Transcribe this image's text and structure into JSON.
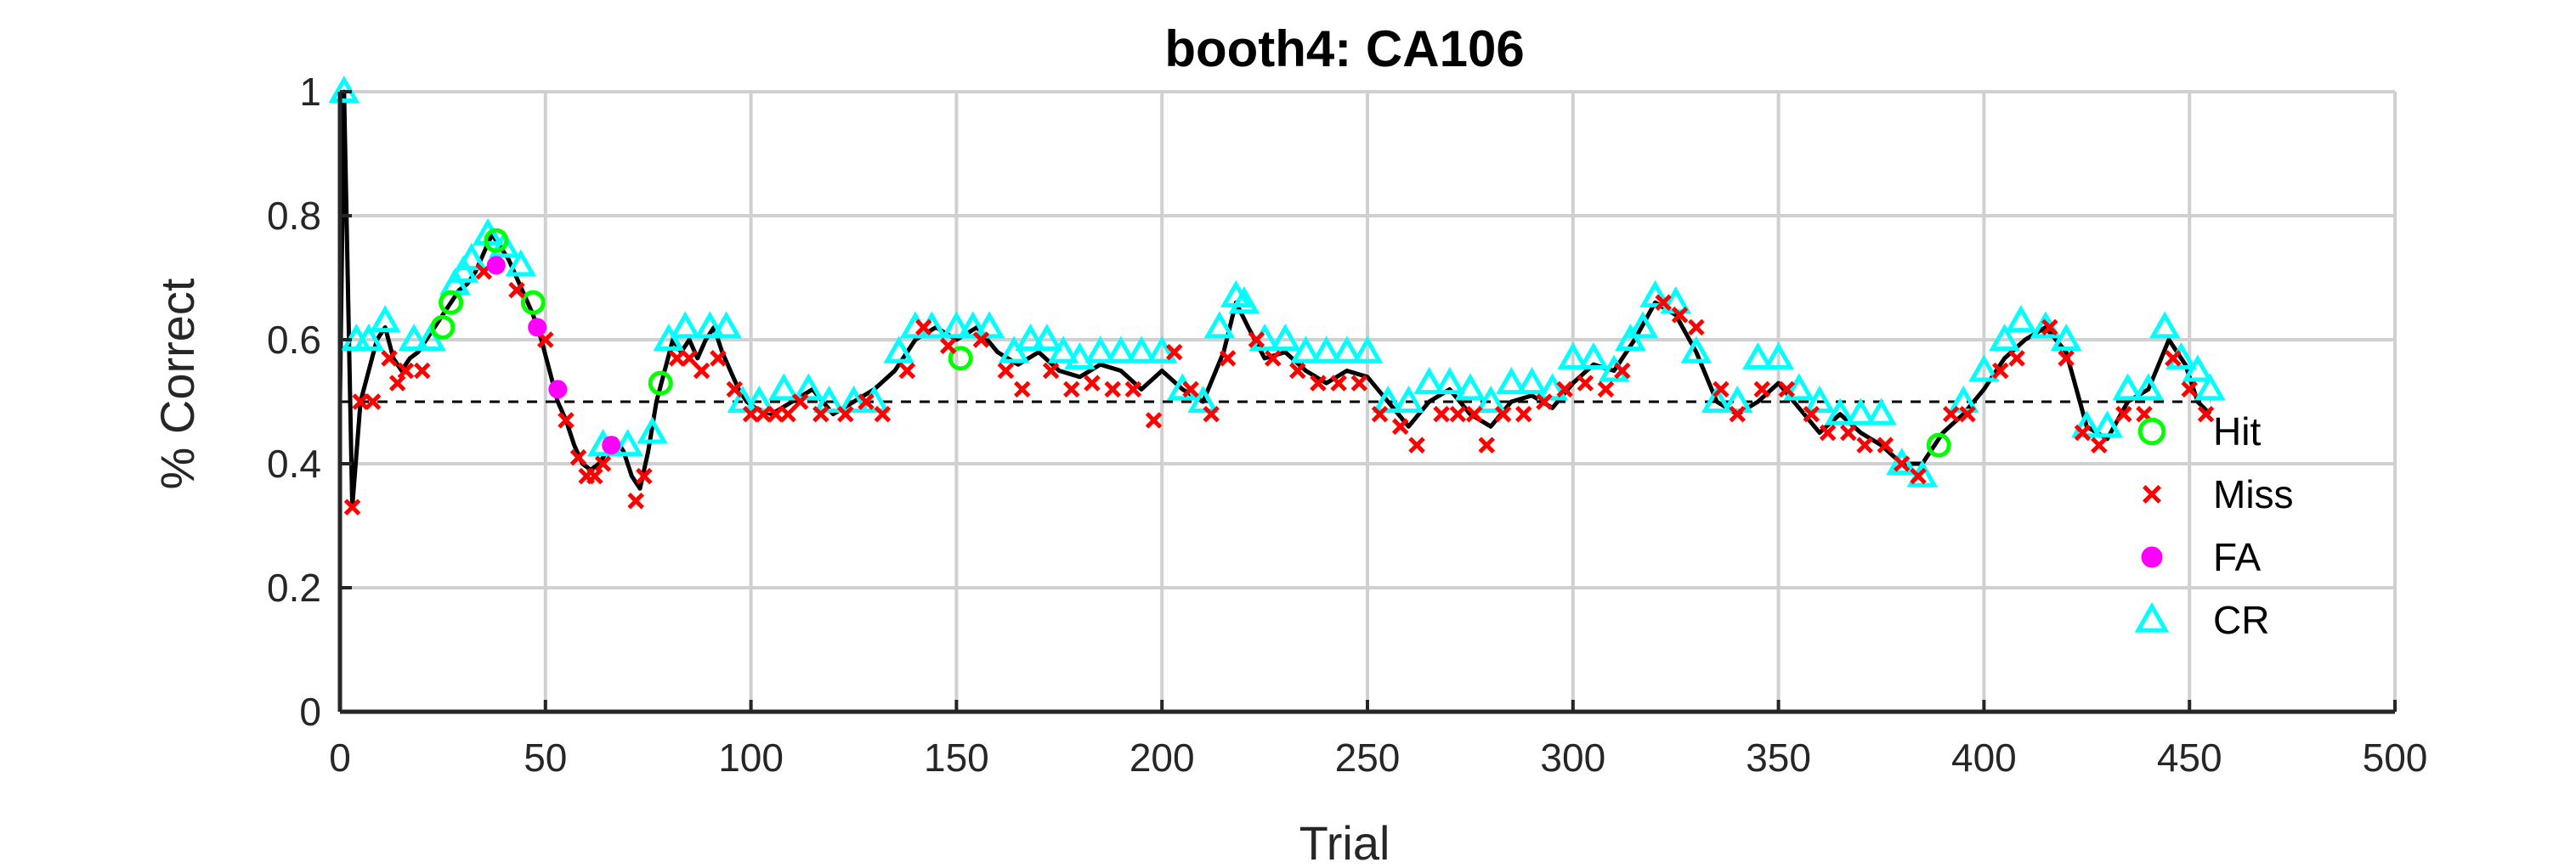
{
  "chart_data": {
    "type": "line",
    "title": "booth4: CA106",
    "xlabel": "Trial",
    "ylabel": "% Correct",
    "xlim": [
      0,
      500
    ],
    "ylim": [
      0,
      1
    ],
    "grid": true,
    "chance_level": 0.5,
    "xticks": [
      "0",
      "50",
      "100",
      "150",
      "200",
      "250",
      "300",
      "350",
      "400",
      "450",
      "500"
    ],
    "yticks": [
      "0",
      "0.2",
      "0.4",
      "0.6",
      "0.8",
      "1"
    ],
    "legend_position": "right",
    "legend": [
      {
        "name": "Hit",
        "marker": "circle-open",
        "color": "#00ff00"
      },
      {
        "name": "Miss",
        "marker": "x",
        "color": "#ff0000"
      },
      {
        "name": "FA",
        "marker": "circle-filled",
        "color": "#ff00ff"
      },
      {
        "name": "CR",
        "marker": "triangle-open",
        "color": "#00ffff"
      }
    ],
    "line_color": "#000000",
    "running_accuracy": [
      [
        1,
        1.0
      ],
      [
        3,
        0.33
      ],
      [
        5,
        0.5
      ],
      [
        7,
        0.55
      ],
      [
        9,
        0.6
      ],
      [
        11,
        0.62
      ],
      [
        13,
        0.57
      ],
      [
        15,
        0.55
      ],
      [
        17,
        0.57
      ],
      [
        19,
        0.58
      ],
      [
        21,
        0.6
      ],
      [
        23,
        0.62
      ],
      [
        25,
        0.64
      ],
      [
        27,
        0.66
      ],
      [
        29,
        0.68
      ],
      [
        31,
        0.69
      ],
      [
        33,
        0.71
      ],
      [
        35,
        0.74
      ],
      [
        37,
        0.77
      ],
      [
        39,
        0.75
      ],
      [
        41,
        0.73
      ],
      [
        43,
        0.7
      ],
      [
        45,
        0.67
      ],
      [
        47,
        0.64
      ],
      [
        49,
        0.6
      ],
      [
        51,
        0.55
      ],
      [
        53,
        0.5
      ],
      [
        55,
        0.47
      ],
      [
        57,
        0.43
      ],
      [
        59,
        0.4
      ],
      [
        61,
        0.39
      ],
      [
        63,
        0.4
      ],
      [
        65,
        0.42
      ],
      [
        67,
        0.44
      ],
      [
        69,
        0.42
      ],
      [
        71,
        0.38
      ],
      [
        73,
        0.36
      ],
      [
        75,
        0.42
      ],
      [
        77,
        0.5
      ],
      [
        79,
        0.55
      ],
      [
        81,
        0.6
      ],
      [
        83,
        0.58
      ],
      [
        85,
        0.6
      ],
      [
        87,
        0.57
      ],
      [
        89,
        0.6
      ],
      [
        91,
        0.62
      ],
      [
        93,
        0.58
      ],
      [
        95,
        0.55
      ],
      [
        97,
        0.52
      ],
      [
        99,
        0.5
      ],
      [
        101,
        0.49
      ],
      [
        105,
        0.48
      ],
      [
        110,
        0.5
      ],
      [
        115,
        0.52
      ],
      [
        120,
        0.48
      ],
      [
        125,
        0.5
      ],
      [
        130,
        0.52
      ],
      [
        135,
        0.55
      ],
      [
        140,
        0.6
      ],
      [
        145,
        0.62
      ],
      [
        150,
        0.6
      ],
      [
        155,
        0.62
      ],
      [
        160,
        0.58
      ],
      [
        165,
        0.56
      ],
      [
        170,
        0.58
      ],
      [
        175,
        0.55
      ],
      [
        180,
        0.54
      ],
      [
        185,
        0.56
      ],
      [
        190,
        0.55
      ],
      [
        195,
        0.52
      ],
      [
        200,
        0.55
      ],
      [
        205,
        0.52
      ],
      [
        210,
        0.5
      ],
      [
        215,
        0.58
      ],
      [
        218,
        0.66
      ],
      [
        221,
        0.62
      ],
      [
        225,
        0.57
      ],
      [
        230,
        0.58
      ],
      [
        235,
        0.55
      ],
      [
        240,
        0.53
      ],
      [
        245,
        0.55
      ],
      [
        250,
        0.54
      ],
      [
        255,
        0.5
      ],
      [
        260,
        0.46
      ],
      [
        265,
        0.5
      ],
      [
        270,
        0.52
      ],
      [
        275,
        0.48
      ],
      [
        280,
        0.46
      ],
      [
        285,
        0.5
      ],
      [
        290,
        0.51
      ],
      [
        295,
        0.49
      ],
      [
        300,
        0.53
      ],
      [
        305,
        0.56
      ],
      [
        310,
        0.55
      ],
      [
        315,
        0.6
      ],
      [
        320,
        0.66
      ],
      [
        325,
        0.64
      ],
      [
        330,
        0.58
      ],
      [
        335,
        0.5
      ],
      [
        340,
        0.48
      ],
      [
        345,
        0.5
      ],
      [
        350,
        0.53
      ],
      [
        355,
        0.49
      ],
      [
        360,
        0.45
      ],
      [
        365,
        0.48
      ],
      [
        370,
        0.45
      ],
      [
        375,
        0.43
      ],
      [
        380,
        0.4
      ],
      [
        385,
        0.4
      ],
      [
        390,
        0.45
      ],
      [
        395,
        0.48
      ],
      [
        400,
        0.52
      ],
      [
        405,
        0.57
      ],
      [
        410,
        0.6
      ],
      [
        415,
        0.62
      ],
      [
        420,
        0.58
      ],
      [
        425,
        0.46
      ],
      [
        430,
        0.44
      ],
      [
        435,
        0.5
      ],
      [
        440,
        0.52
      ],
      [
        445,
        0.6
      ],
      [
        449,
        0.56
      ],
      [
        452,
        0.5
      ],
      [
        455,
        0.48
      ]
    ],
    "points": {
      "Hit": [
        [
          25,
          0.62
        ],
        [
          27,
          0.66
        ],
        [
          38,
          0.76
        ],
        [
          47,
          0.66
        ],
        [
          78,
          0.53
        ],
        [
          151,
          0.57
        ],
        [
          389,
          0.43
        ]
      ],
      "Miss": [
        [
          3,
          0.33
        ],
        [
          5,
          0.5
        ],
        [
          8,
          0.5
        ],
        [
          12,
          0.57
        ],
        [
          14,
          0.53
        ],
        [
          16,
          0.55
        ],
        [
          20,
          0.55
        ],
        [
          35,
          0.71
        ],
        [
          43,
          0.68
        ],
        [
          50,
          0.6
        ],
        [
          55,
          0.47
        ],
        [
          58,
          0.41
        ],
        [
          60,
          0.38
        ],
        [
          62,
          0.38
        ],
        [
          64,
          0.4
        ],
        [
          72,
          0.34
        ],
        [
          74,
          0.38
        ],
        [
          82,
          0.57
        ],
        [
          85,
          0.57
        ],
        [
          88,
          0.55
        ],
        [
          92,
          0.57
        ],
        [
          96,
          0.52
        ],
        [
          100,
          0.48
        ],
        [
          103,
          0.48
        ],
        [
          106,
          0.48
        ],
        [
          109,
          0.48
        ],
        [
          112,
          0.5
        ],
        [
          117,
          0.48
        ],
        [
          123,
          0.48
        ],
        [
          128,
          0.5
        ],
        [
          132,
          0.48
        ],
        [
          138,
          0.55
        ],
        [
          142,
          0.62
        ],
        [
          148,
          0.59
        ],
        [
          156,
          0.6
        ],
        [
          162,
          0.55
        ],
        [
          166,
          0.52
        ],
        [
          173,
          0.55
        ],
        [
          178,
          0.52
        ],
        [
          183,
          0.53
        ],
        [
          188,
          0.52
        ],
        [
          193,
          0.52
        ],
        [
          198,
          0.47
        ],
        [
          203,
          0.58
        ],
        [
          207,
          0.52
        ],
        [
          212,
          0.48
        ],
        [
          216,
          0.57
        ],
        [
          223,
          0.6
        ],
        [
          227,
          0.57
        ],
        [
          233,
          0.55
        ],
        [
          238,
          0.53
        ],
        [
          243,
          0.53
        ],
        [
          248,
          0.53
        ],
        [
          253,
          0.48
        ],
        [
          258,
          0.46
        ],
        [
          262,
          0.43
        ],
        [
          268,
          0.48
        ],
        [
          272,
          0.48
        ],
        [
          276,
          0.48
        ],
        [
          279,
          0.43
        ],
        [
          283,
          0.48
        ],
        [
          288,
          0.48
        ],
        [
          293,
          0.5
        ],
        [
          298,
          0.52
        ],
        [
          303,
          0.53
        ],
        [
          308,
          0.52
        ],
        [
          312,
          0.55
        ],
        [
          322,
          0.66
        ],
        [
          326,
          0.64
        ],
        [
          330,
          0.62
        ],
        [
          336,
          0.52
        ],
        [
          340,
          0.48
        ],
        [
          346,
          0.52
        ],
        [
          352,
          0.52
        ],
        [
          358,
          0.48
        ],
        [
          362,
          0.45
        ],
        [
          367,
          0.45
        ],
        [
          371,
          0.43
        ],
        [
          376,
          0.43
        ],
        [
          380,
          0.4
        ],
        [
          384,
          0.38
        ],
        [
          392,
          0.48
        ],
        [
          396,
          0.48
        ],
        [
          404,
          0.55
        ],
        [
          408,
          0.57
        ],
        [
          416,
          0.62
        ],
        [
          420,
          0.57
        ],
        [
          424,
          0.45
        ],
        [
          428,
          0.43
        ],
        [
          434,
          0.48
        ],
        [
          439,
          0.48
        ],
        [
          446,
          0.57
        ],
        [
          450,
          0.52
        ],
        [
          454,
          0.48
        ]
      ],
      "FA": [
        [
          38,
          0.72
        ],
        [
          48,
          0.62
        ],
        [
          53,
          0.52
        ],
        [
          66,
          0.43
        ]
      ],
      "CR": [
        [
          1,
          1.0
        ],
        [
          4,
          0.6
        ],
        [
          7,
          0.6
        ],
        [
          11,
          0.63
        ],
        [
          18,
          0.6
        ],
        [
          22,
          0.6
        ],
        [
          28,
          0.69
        ],
        [
          30,
          0.71
        ],
        [
          32,
          0.73
        ],
        [
          36,
          0.77
        ],
        [
          40,
          0.75
        ],
        [
          44,
          0.72
        ],
        [
          64,
          0.43
        ],
        [
          70,
          0.43
        ],
        [
          76,
          0.45
        ],
        [
          80,
          0.6
        ],
        [
          84,
          0.62
        ],
        [
          90,
          0.62
        ],
        [
          94,
          0.62
        ],
        [
          98,
          0.5
        ],
        [
          102,
          0.5
        ],
        [
          108,
          0.52
        ],
        [
          114,
          0.52
        ],
        [
          119,
          0.5
        ],
        [
          125,
          0.5
        ],
        [
          130,
          0.5
        ],
        [
          136,
          0.58
        ],
        [
          140,
          0.62
        ],
        [
          144,
          0.62
        ],
        [
          150,
          0.62
        ],
        [
          154,
          0.62
        ],
        [
          158,
          0.62
        ],
        [
          164,
          0.58
        ],
        [
          168,
          0.6
        ],
        [
          172,
          0.6
        ],
        [
          176,
          0.58
        ],
        [
          180,
          0.57
        ],
        [
          185,
          0.58
        ],
        [
          190,
          0.58
        ],
        [
          195,
          0.58
        ],
        [
          200,
          0.58
        ],
        [
          205,
          0.52
        ],
        [
          210,
          0.5
        ],
        [
          214,
          0.62
        ],
        [
          218,
          0.67
        ],
        [
          220,
          0.66
        ],
        [
          225,
          0.6
        ],
        [
          230,
          0.6
        ],
        [
          235,
          0.58
        ],
        [
          240,
          0.58
        ],
        [
          245,
          0.58
        ],
        [
          250,
          0.58
        ],
        [
          255,
          0.5
        ],
        [
          260,
          0.5
        ],
        [
          265,
          0.53
        ],
        [
          270,
          0.53
        ],
        [
          275,
          0.52
        ],
        [
          280,
          0.5
        ],
        [
          285,
          0.53
        ],
        [
          290,
          0.53
        ],
        [
          295,
          0.52
        ],
        [
          300,
          0.57
        ],
        [
          305,
          0.57
        ],
        [
          310,
          0.55
        ],
        [
          314,
          0.6
        ],
        [
          317,
          0.62
        ],
        [
          320,
          0.67
        ],
        [
          325,
          0.66
        ],
        [
          330,
          0.58
        ],
        [
          335,
          0.5
        ],
        [
          340,
          0.5
        ],
        [
          345,
          0.57
        ],
        [
          350,
          0.57
        ],
        [
          355,
          0.52
        ],
        [
          360,
          0.5
        ],
        [
          365,
          0.48
        ],
        [
          370,
          0.48
        ],
        [
          375,
          0.48
        ],
        [
          380,
          0.4
        ],
        [
          385,
          0.38
        ],
        [
          395,
          0.5
        ],
        [
          400,
          0.55
        ],
        [
          405,
          0.6
        ],
        [
          409,
          0.63
        ],
        [
          415,
          0.62
        ],
        [
          420,
          0.6
        ],
        [
          425,
          0.46
        ],
        [
          430,
          0.46
        ],
        [
          435,
          0.52
        ],
        [
          440,
          0.52
        ],
        [
          444,
          0.62
        ],
        [
          448,
          0.57
        ],
        [
          452,
          0.55
        ],
        [
          455,
          0.52
        ]
      ]
    }
  }
}
